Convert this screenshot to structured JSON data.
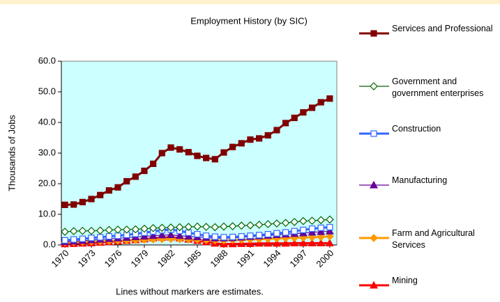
{
  "chart_data": {
    "type": "line",
    "title": "Employment History (by SIC)",
    "ylabel": "Thousands of Jobs",
    "annotation": "Lines without markers are estimates.",
    "x": [
      1970,
      1971,
      1972,
      1973,
      1974,
      1975,
      1976,
      1977,
      1978,
      1979,
      1980,
      1981,
      1982,
      1983,
      1984,
      1985,
      1986,
      1987,
      1988,
      1989,
      1990,
      1991,
      1992,
      1993,
      1994,
      1995,
      1996,
      1997,
      1998,
      1999,
      2000
    ],
    "xlim": [
      1969.6,
      2000.8
    ],
    "xticks": [
      1970,
      1973,
      1976,
      1979,
      1982,
      1985,
      1988,
      1991,
      1994,
      1997,
      2000
    ],
    "ylim": [
      0,
      60
    ],
    "yticks": [
      {
        "value": 0,
        "label": "0.0"
      },
      {
        "value": 10,
        "label": "10.0"
      },
      {
        "value": 20,
        "label": "20.0"
      },
      {
        "value": 30,
        "label": "30.0"
      },
      {
        "value": 40,
        "label": "40.0"
      },
      {
        "value": 50,
        "label": "50.0"
      },
      {
        "value": 60,
        "label": "60.0"
      }
    ],
    "plot_background": "#ccffff",
    "legend": "right",
    "series": [
      {
        "name": "Services and Professional",
        "color": "#800000",
        "marker": "square",
        "filled": true,
        "width": 3,
        "values": [
          13.1,
          13.2,
          14.0,
          15.0,
          16.3,
          17.8,
          18.8,
          20.8,
          22.3,
          24.2,
          26.5,
          30.0,
          31.8,
          31.2,
          30.3,
          29.1,
          28.4,
          28.0,
          30.2,
          32.0,
          33.2,
          34.4,
          34.8,
          35.8,
          37.5,
          39.8,
          41.5,
          43.3,
          44.8,
          46.6,
          47.8
        ]
      },
      {
        "name": "Government and government enterprises",
        "color": "#006400",
        "marker": "diamond",
        "filled": false,
        "width": 1.2,
        "values": [
          4.3,
          4.5,
          4.6,
          4.6,
          4.7,
          4.9,
          5.0,
          5.0,
          5.1,
          5.3,
          5.5,
          5.6,
          5.7,
          5.8,
          5.9,
          6.0,
          5.9,
          5.8,
          6.0,
          6.1,
          6.3,
          6.4,
          6.6,
          6.8,
          7.0,
          7.2,
          7.5,
          7.8,
          7.9,
          8.1,
          8.3
        ]
      },
      {
        "name": "Construction",
        "color": "#3366ff",
        "marker": "square",
        "filled": false,
        "width": 3,
        "values": [
          1.5,
          1.8,
          2.0,
          2.3,
          2.5,
          2.8,
          3.0,
          3.3,
          3.6,
          4.0,
          4.4,
          4.8,
          5.0,
          4.6,
          4.0,
          3.5,
          3.0,
          2.7,
          2.5,
          2.6,
          2.8,
          3.0,
          3.2,
          3.5,
          3.8,
          4.1,
          4.5,
          4.9,
          5.3,
          5.6,
          5.8
        ]
      },
      {
        "name": "Manufacturing",
        "color": "#660099",
        "marker": "triangle",
        "filled": true,
        "width": 1.2,
        "values": [
          1.0,
          1.2,
          1.4,
          1.6,
          1.8,
          2.0,
          2.2,
          2.4,
          2.6,
          2.8,
          3.0,
          3.2,
          3.3,
          3.0,
          2.8,
          2.6,
          2.4,
          2.2,
          2.2,
          2.3,
          2.5,
          2.7,
          2.9,
          3.1,
          3.3,
          3.5,
          3.7,
          3.9,
          4.1,
          4.3,
          4.5
        ]
      },
      {
        "name": "Farm and Agricultural Services",
        "color": "#ff9900",
        "marker": "diamond",
        "filled": true,
        "width": 3,
        "values": [
          0.8,
          0.9,
          1.0,
          1.1,
          1.2,
          1.3,
          1.4,
          1.5,
          1.6,
          1.7,
          1.8,
          1.9,
          2.0,
          1.9,
          1.8,
          1.7,
          1.6,
          1.5,
          1.5,
          1.6,
          1.7,
          1.8,
          1.9,
          2.0,
          2.1,
          2.2,
          2.3,
          2.4,
          2.5,
          2.6,
          2.8
        ]
      },
      {
        "name": "Mining",
        "color": "#ff0000",
        "marker": "triangle",
        "filled": true,
        "width": 3,
        "values": [
          0.3,
          0.4,
          0.5,
          0.6,
          0.8,
          1.0,
          1.2,
          1.4,
          1.6,
          1.9,
          2.2,
          2.4,
          2.5,
          2.2,
          1.8,
          1.4,
          1.0,
          0.5,
          0.3,
          0.3,
          0.4,
          0.4,
          0.5,
          0.5,
          0.5,
          0.5,
          0.6,
          0.6,
          0.6,
          0.6,
          0.6
        ]
      }
    ]
  }
}
